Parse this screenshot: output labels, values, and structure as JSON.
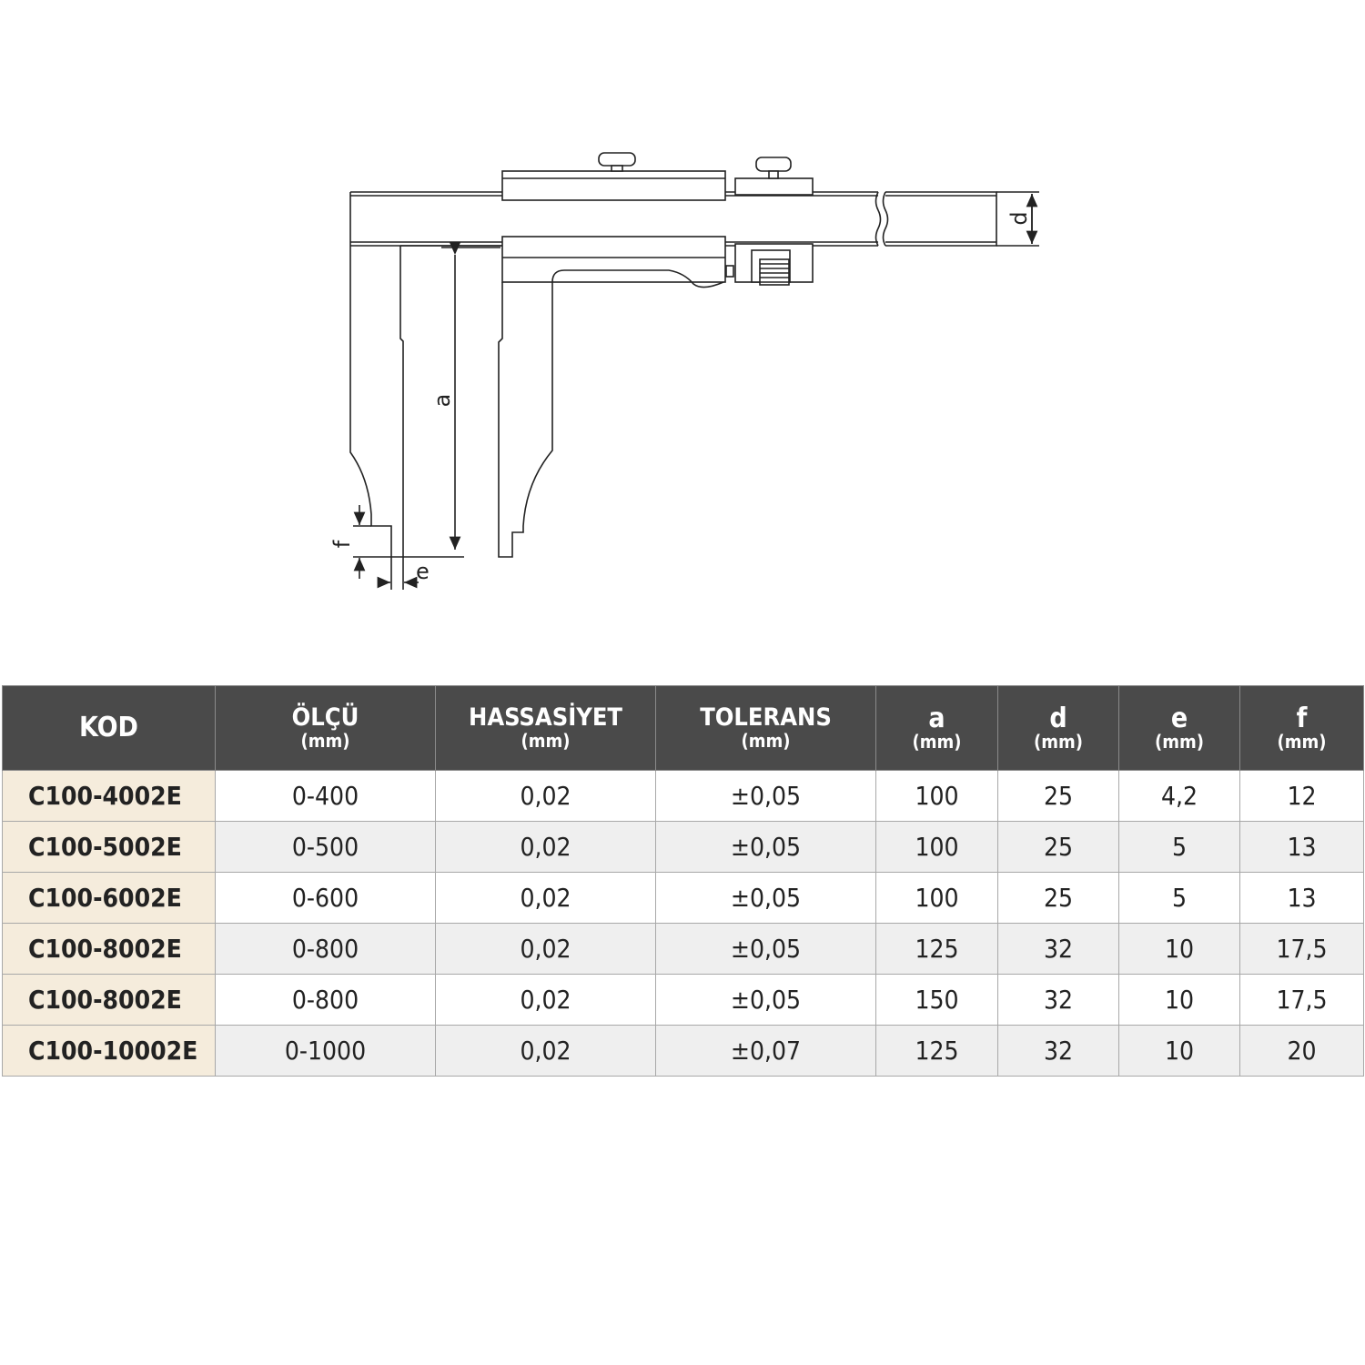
{
  "diagram": {
    "labels": {
      "a": "a",
      "d": "d",
      "e": "e",
      "f": "f"
    }
  },
  "table": {
    "headers": [
      {
        "title": "KOD",
        "unit": ""
      },
      {
        "title": "ÖLÇÜ",
        "unit": "(mm)"
      },
      {
        "title": "HASSASİYET",
        "unit": "(mm)"
      },
      {
        "title": "TOLERANS",
        "unit": "(mm)"
      },
      {
        "title": "a",
        "unit": "(mm)"
      },
      {
        "title": "d",
        "unit": "(mm)"
      },
      {
        "title": "e",
        "unit": "(mm)"
      },
      {
        "title": "f",
        "unit": "(mm)"
      }
    ],
    "rows": [
      [
        "C100-4002E",
        "0-400",
        "0,02",
        "±0,05",
        "100",
        "25",
        "4,2",
        "12"
      ],
      [
        "C100-5002E",
        "0-500",
        "0,02",
        "±0,05",
        "100",
        "25",
        "5",
        "13"
      ],
      [
        "C100-6002E",
        "0-600",
        "0,02",
        "±0,05",
        "100",
        "25",
        "5",
        "13"
      ],
      [
        "C100-8002E",
        "0-800",
        "0,02",
        "±0,05",
        "125",
        "32",
        "10",
        "17,5"
      ],
      [
        "C100-8002E",
        "0-800",
        "0,02",
        "±0,05",
        "150",
        "32",
        "10",
        "17,5"
      ],
      [
        "C100-10002E",
        "0-1000",
        "0,02",
        "±0,07",
        "125",
        "32",
        "10",
        "20"
      ]
    ]
  },
  "colors": {
    "header_bg": "#4a4a4a",
    "code_bg": "#f5ecdc",
    "alt_row_bg": "#efefef"
  }
}
